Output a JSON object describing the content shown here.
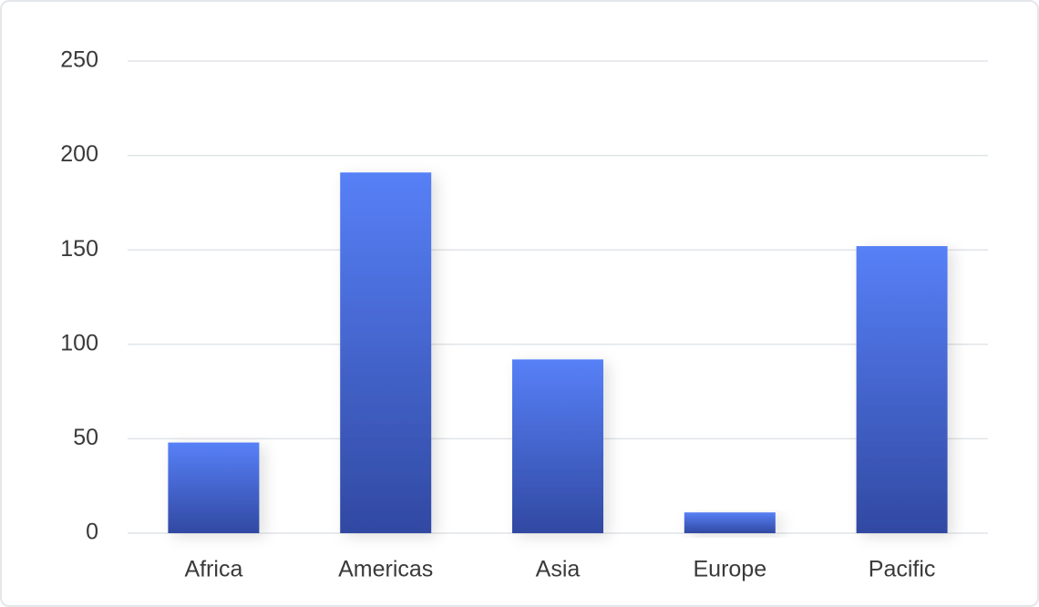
{
  "chart_data": {
    "type": "bar",
    "categories": [
      "Africa",
      "Americas",
      "Asia",
      "Europe",
      "Pacific"
    ],
    "values": [
      48,
      191,
      92,
      11,
      152
    ],
    "colors": [
      "#5780f7",
      "#3149a2"
    ],
    "ylim": [
      0,
      250
    ],
    "yticks": [
      0,
      50,
      100,
      150,
      200,
      250
    ],
    "grid": true
  }
}
